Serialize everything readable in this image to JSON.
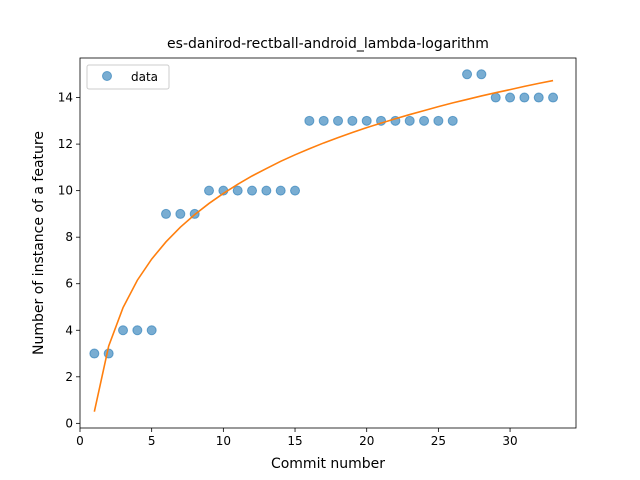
{
  "chart_data": {
    "type": "scatter",
    "title": "es-danirod-rectball-android_lambda-logarithm",
    "xlabel": "Commit number",
    "ylabel": "Number of instance of a feature",
    "xlim": [
      0,
      34.6
    ],
    "ylim": [
      -0.2,
      15.7
    ],
    "xticks": [
      0,
      5,
      10,
      15,
      20,
      25,
      30
    ],
    "yticks": [
      0,
      2,
      4,
      6,
      8,
      10,
      12,
      14
    ],
    "grid": false,
    "legend_position": "top-left",
    "series": [
      {
        "name": "data",
        "kind": "scatter",
        "color": "#1f77b4",
        "x": [
          1,
          2,
          3,
          4,
          5,
          6,
          7,
          8,
          9,
          10,
          11,
          12,
          13,
          14,
          15,
          16,
          17,
          18,
          19,
          20,
          21,
          22,
          23,
          24,
          25,
          26,
          27,
          28,
          29,
          30,
          31,
          32,
          33
        ],
        "y": [
          3,
          3,
          4,
          4,
          4,
          9,
          9,
          9,
          10,
          10,
          10,
          10,
          10,
          10,
          10,
          13,
          13,
          13,
          13,
          13,
          13,
          13,
          13,
          13,
          13,
          13,
          15,
          15,
          14,
          14,
          14,
          14,
          14
        ]
      },
      {
        "kind": "line",
        "color": "#ff7f0e",
        "x": [
          1,
          2,
          3,
          4,
          5,
          6,
          7,
          8,
          9,
          10,
          11,
          12,
          13,
          14,
          15,
          16,
          17,
          18,
          19,
          20,
          21,
          22,
          23,
          24,
          25,
          26,
          27,
          28,
          29,
          30,
          31,
          32,
          33
        ],
        "y": [
          0.5,
          3.32,
          4.97,
          6.15,
          7.06,
          7.8,
          8.43,
          8.97,
          9.45,
          9.88,
          10.27,
          10.63,
          10.95,
          11.26,
          11.54,
          11.8,
          12.05,
          12.28,
          12.5,
          12.71,
          12.9,
          13.09,
          13.27,
          13.44,
          13.61,
          13.77,
          13.92,
          14.07,
          14.21,
          14.34,
          14.48,
          14.61,
          14.73
        ]
      }
    ]
  }
}
